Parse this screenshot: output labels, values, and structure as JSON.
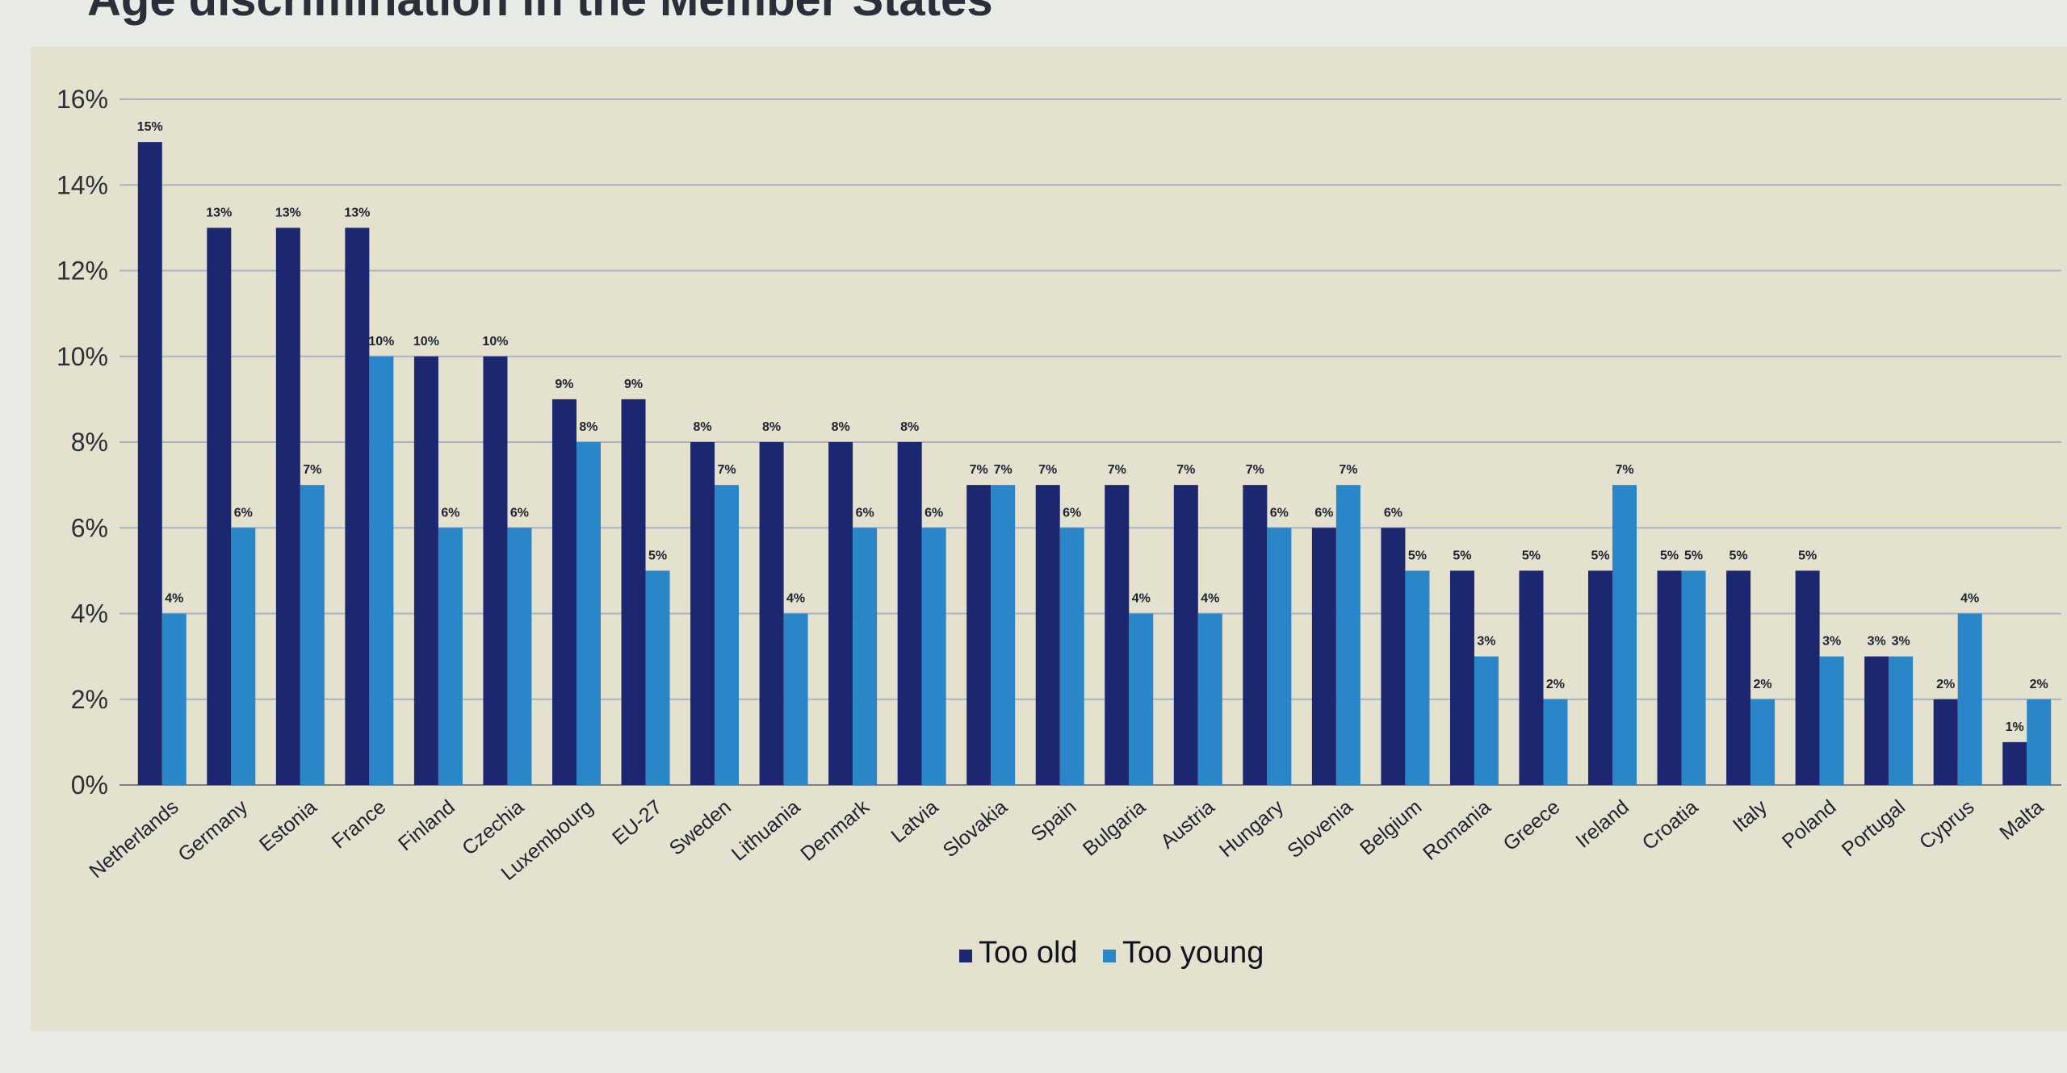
{
  "page": {
    "title": "Age discrimination in the Member States"
  },
  "chart_data": {
    "type": "bar",
    "title": "Age discrimination in the Member States",
    "xlabel": "",
    "ylabel": "",
    "ylim": [
      0,
      16
    ],
    "yticks": [
      "0%",
      "2%",
      "4%",
      "6%",
      "8%",
      "10%",
      "12%",
      "14%",
      "16%"
    ],
    "grid": true,
    "legend_position": "bottom-center",
    "categories": [
      "Netherlands",
      "Germany",
      "Estonia",
      "France",
      "Finland",
      "Czechia",
      "Luxembourg",
      "EU-27",
      "Sweden",
      "Lithuania",
      "Denmark",
      "Latvia",
      "Slovakia",
      "Spain",
      "Bulgaria",
      "Austria",
      "Hungary",
      "Slovenia",
      "Belgium",
      "Romania",
      "Greece",
      "Ireland",
      "Croatia",
      "Italy",
      "Poland",
      "Portugal",
      "Cyprus",
      "Malta"
    ],
    "series": [
      {
        "name": "Too old",
        "color": "#1c2770",
        "values": [
          15,
          13,
          13,
          13,
          10,
          10,
          9,
          9,
          8,
          8,
          8,
          8,
          7,
          7,
          7,
          7,
          7,
          6,
          6,
          5,
          5,
          5,
          5,
          5,
          5,
          3,
          2,
          1
        ],
        "labels": [
          "15%",
          "13%",
          "13%",
          "13%",
          "10%",
          "10%",
          "9%",
          "9%",
          "8%",
          "8%",
          "8%",
          "8%",
          "7%",
          "7%",
          "7%",
          "7%",
          "7%",
          "6%",
          "6%",
          "5%",
          "5%",
          "5%",
          "5%",
          "5%",
          "5%",
          "3%",
          "2%",
          "1%"
        ]
      },
      {
        "name": "Too young",
        "color": "#2b86c8",
        "values": [
          4,
          6,
          7,
          10,
          6,
          6,
          8,
          5,
          7,
          4,
          6,
          6,
          7,
          6,
          4,
          4,
          6,
          7,
          5,
          3,
          2,
          7,
          5,
          2,
          3,
          3,
          4,
          2
        ],
        "labels": [
          "4%",
          "6%",
          "7%",
          "10%",
          "6%",
          "6%",
          "8%",
          "5%",
          "7%",
          "4%",
          "6%",
          "6%",
          "7%",
          "6%",
          "4%",
          "4%",
          "6%",
          "7%",
          "5%",
          "3%",
          "2%",
          "7%",
          "5%",
          "2%",
          "3%",
          "3%",
          "4%",
          "2%"
        ]
      }
    ]
  }
}
